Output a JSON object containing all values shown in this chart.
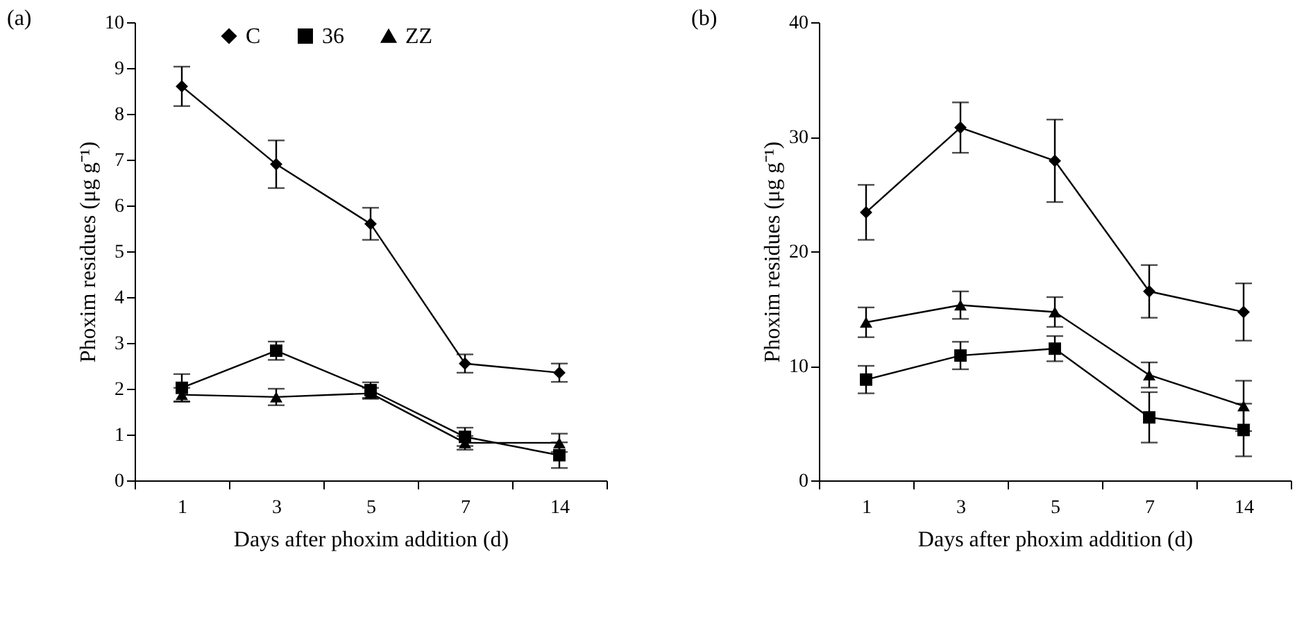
{
  "chart_data": [
    {
      "type": "line",
      "title": "(a)",
      "xlabel": "Days after phoxim addition (d)",
      "ylabel": "Phoxim residues (μg g⁻¹)",
      "categories": [
        "1",
        "3",
        "5",
        "7",
        "14"
      ],
      "ylim": [
        0,
        10
      ],
      "yticks": [
        0,
        1,
        2,
        3,
        4,
        5,
        6,
        7,
        8,
        9,
        10
      ],
      "grid": false,
      "legend": "top",
      "series": [
        {
          "name": "C",
          "color": "#000000",
          "marker": "diamond",
          "values": [
            8.6,
            6.9,
            5.6,
            2.55,
            2.35
          ],
          "errors": [
            0.43,
            0.52,
            0.35,
            0.2,
            0.2
          ]
        },
        {
          "name": "36",
          "color": "#000000",
          "marker": "square",
          "values": [
            2.02,
            2.83,
            1.97,
            0.95,
            0.55
          ],
          "errors": [
            0.3,
            0.2,
            0.17,
            0.2,
            0.28
          ]
        },
        {
          "name": "ZZ",
          "color": "#000000",
          "marker": "triangle",
          "values": [
            1.87,
            1.82,
            1.9,
            0.82,
            0.82
          ],
          "errors": [
            0.15,
            0.18,
            0.12,
            0.15,
            0.2
          ]
        }
      ]
    },
    {
      "type": "line",
      "title": "(b)",
      "xlabel": "Days after phoxim addition (d)",
      "ylabel": "Phoxim residues (μg g⁻¹)",
      "categories": [
        "1",
        "3",
        "5",
        "7",
        "14"
      ],
      "ylim": [
        0,
        40
      ],
      "yticks": [
        0,
        10,
        20,
        30,
        40
      ],
      "grid": false,
      "legend": false,
      "series": [
        {
          "name": "C",
          "color": "#000000",
          "marker": "diamond",
          "values": [
            23.4,
            30.8,
            27.9,
            16.5,
            14.7
          ],
          "errors": [
            2.4,
            2.2,
            3.6,
            2.3,
            2.5
          ]
        },
        {
          "name": "36",
          "color": "#000000",
          "marker": "square",
          "values": [
            8.8,
            10.9,
            11.5,
            5.5,
            4.4
          ],
          "errors": [
            1.2,
            1.2,
            1.1,
            2.2,
            2.3
          ]
        },
        {
          "name": "ZZ",
          "color": "#000000",
          "marker": "triangle",
          "values": [
            13.8,
            15.3,
            14.7,
            9.2,
            6.5
          ],
          "errors": [
            1.3,
            1.2,
            1.3,
            1.1,
            2.2
          ]
        }
      ]
    }
  ]
}
